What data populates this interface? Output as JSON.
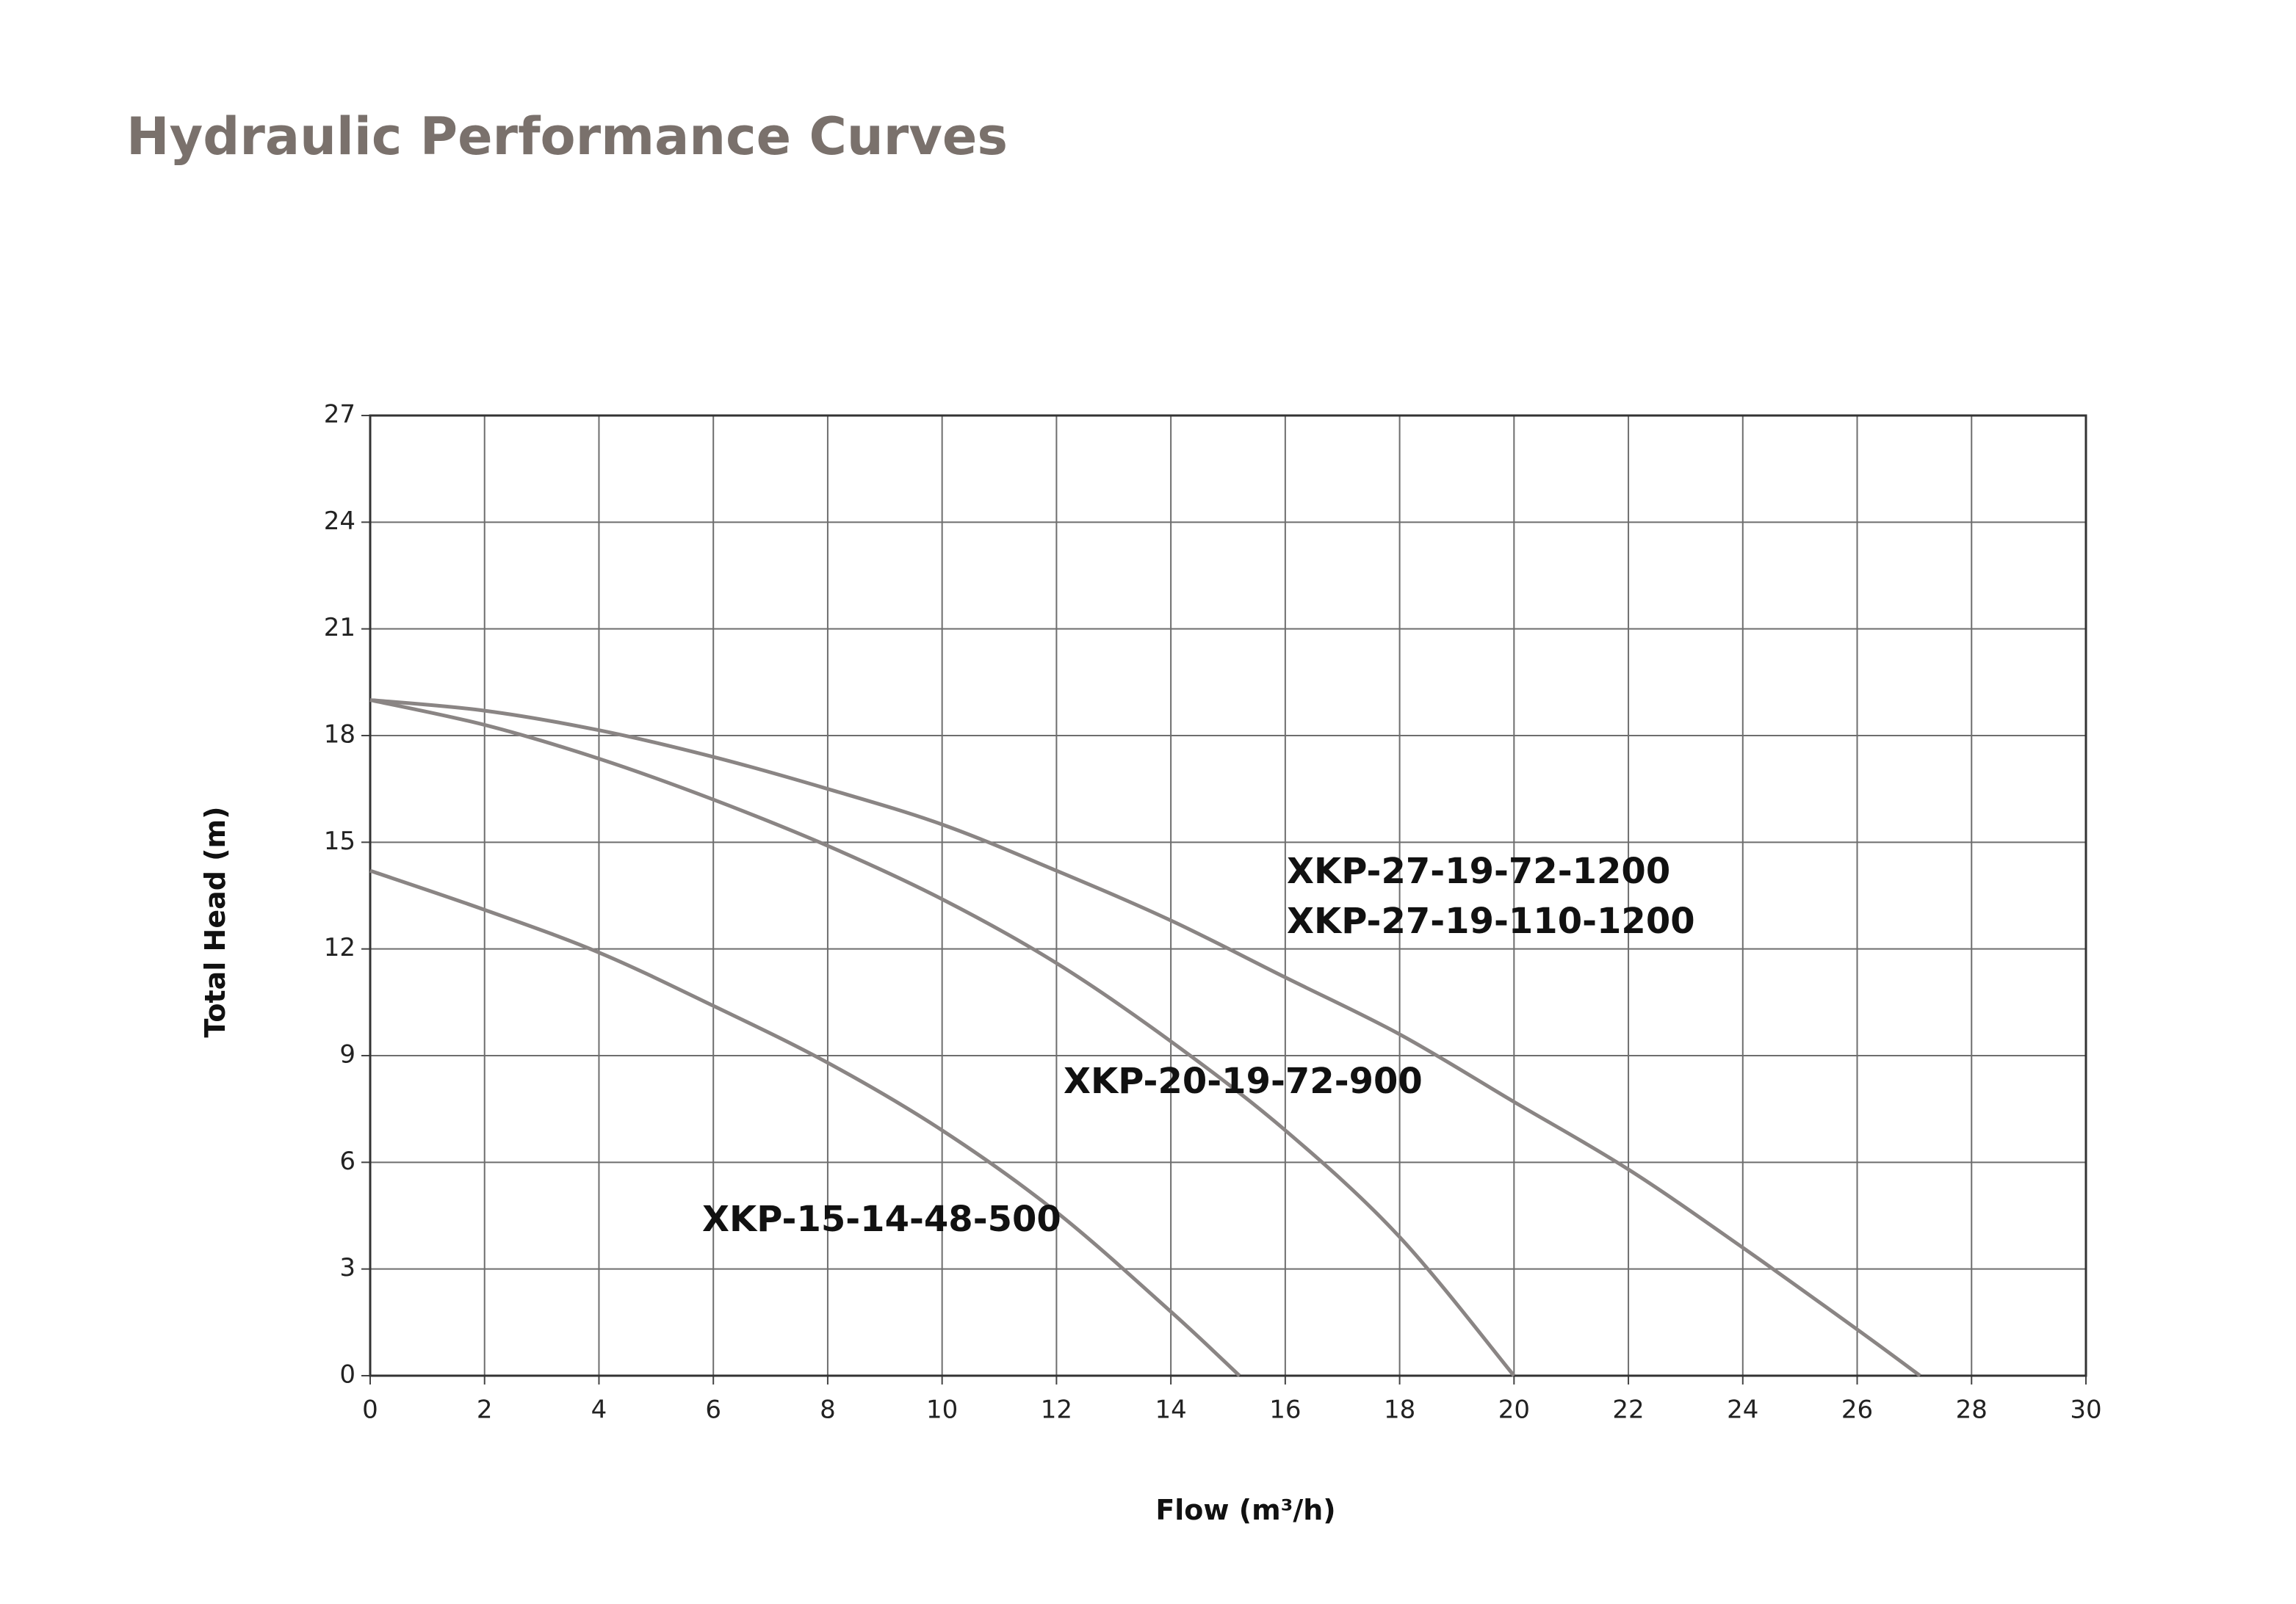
{
  "chart_data": {
    "type": "line",
    "title": "Hydraulic Performance Curves",
    "x_label": "Flow (m³/h)",
    "y_label": "Total Head (m)",
    "xlim": [
      0,
      30
    ],
    "xticks": [
      0,
      2,
      4,
      6,
      8,
      10,
      12,
      14,
      16,
      18,
      20,
      22,
      24,
      26,
      28,
      30
    ],
    "ylim": [
      0,
      27
    ],
    "yticks": [
      0,
      3,
      6,
      9,
      12,
      15,
      18,
      21,
      24,
      27
    ],
    "grid": true,
    "series": [
      {
        "labels": [
          "XKP-27-19-72-1200",
          "XKP-27-19-110-1200"
        ],
        "color": "#8a8584",
        "x": [
          0,
          2,
          4,
          6,
          8,
          10,
          12,
          14,
          16,
          18,
          20,
          22,
          24,
          26,
          27.1
        ],
        "values": [
          19,
          18.7,
          18.15,
          17.4,
          16.5,
          15.5,
          14.2,
          12.8,
          11.2,
          9.6,
          7.7,
          5.8,
          3.6,
          1.3,
          0
        ]
      },
      {
        "labels": [
          "XKP-20-19-72-900"
        ],
        "color": "#8a8584",
        "x": [
          0,
          2,
          4,
          6,
          8,
          10,
          12,
          14,
          16,
          18,
          20
        ],
        "values": [
          19,
          18.3,
          17.35,
          16.2,
          14.9,
          13.4,
          11.6,
          9.4,
          6.9,
          3.9,
          0
        ]
      },
      {
        "labels": [
          "XKP-15-14-48-500"
        ],
        "color": "#8a8584",
        "x": [
          0,
          2,
          4,
          6,
          8,
          10,
          12,
          14,
          15.2
        ],
        "values": [
          14.2,
          13.1,
          11.9,
          10.4,
          8.8,
          6.9,
          4.6,
          1.8,
          0
        ]
      }
    ]
  }
}
